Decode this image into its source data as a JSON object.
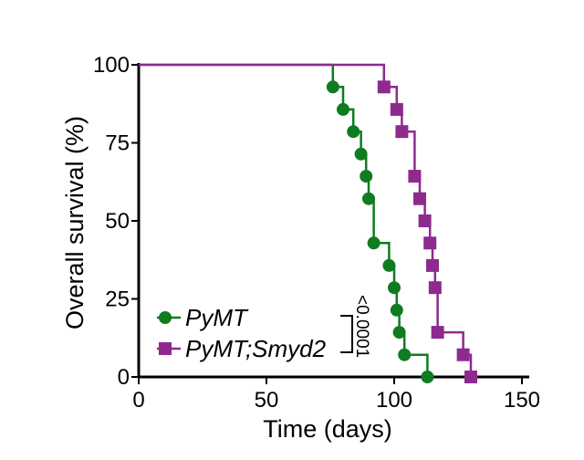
{
  "chart_data": {
    "type": "line",
    "subtype": "kaplan-meier",
    "title": "",
    "xlabel": "Time (days)",
    "ylabel": "Overall survival (%)",
    "xlim": [
      0,
      150
    ],
    "ylim": [
      0,
      100
    ],
    "x_ticks": [
      "0",
      "50",
      "100",
      "150"
    ],
    "y_ticks": [
      "0",
      "25",
      "50",
      "75",
      "100"
    ],
    "grid": false,
    "legend_position": "bottom-left",
    "p_value_label": "<0.0001",
    "series": [
      {
        "name": "PyMT",
        "color": "#0e7c1f",
        "marker": "circle",
        "steps": [
          [
            0,
            100
          ],
          [
            76,
            100
          ],
          [
            76,
            92.9
          ],
          [
            80,
            92.9
          ],
          [
            80,
            85.7
          ],
          [
            84,
            85.7
          ],
          [
            84,
            78.6
          ],
          [
            87,
            78.6
          ],
          [
            87,
            71.4
          ],
          [
            89,
            71.4
          ],
          [
            89,
            64.3
          ],
          [
            90,
            64.3
          ],
          [
            90,
            57.1
          ],
          [
            92,
            57.1
          ],
          [
            92,
            42.9
          ],
          [
            98,
            42.9
          ],
          [
            98,
            35.7
          ],
          [
            100,
            35.7
          ],
          [
            100,
            28.6
          ],
          [
            101,
            28.6
          ],
          [
            101,
            21.4
          ],
          [
            102,
            21.4
          ],
          [
            102,
            14.3
          ],
          [
            104,
            14.3
          ],
          [
            104,
            7.1
          ],
          [
            113,
            7.1
          ],
          [
            113,
            0
          ]
        ],
        "points": [
          [
            76,
            92.9
          ],
          [
            80,
            85.7
          ],
          [
            84,
            78.6
          ],
          [
            87,
            71.4
          ],
          [
            89,
            64.3
          ],
          [
            90,
            57.1
          ],
          [
            92,
            42.9
          ],
          [
            98,
            35.7
          ],
          [
            100,
            28.6
          ],
          [
            101,
            21.4
          ],
          [
            102,
            14.3
          ],
          [
            104,
            7.1
          ],
          [
            113,
            0
          ]
        ]
      },
      {
        "name": "PyMT;Smyd2",
        "color": "#8e2a8e",
        "marker": "square",
        "steps": [
          [
            0,
            100
          ],
          [
            96,
            100
          ],
          [
            96,
            92.9
          ],
          [
            101,
            92.9
          ],
          [
            101,
            85.7
          ],
          [
            103,
            85.7
          ],
          [
            103,
            78.6
          ],
          [
            108,
            78.6
          ],
          [
            108,
            64.3
          ],
          [
            110,
            64.3
          ],
          [
            110,
            57.1
          ],
          [
            112,
            57.1
          ],
          [
            112,
            50
          ],
          [
            114,
            50
          ],
          [
            114,
            42.9
          ],
          [
            115,
            42.9
          ],
          [
            115,
            35.7
          ],
          [
            116,
            35.7
          ],
          [
            116,
            28.6
          ],
          [
            117,
            28.6
          ],
          [
            117,
            14.3
          ],
          [
            127,
            14.3
          ],
          [
            127,
            7.1
          ],
          [
            130,
            7.1
          ],
          [
            130,
            0
          ]
        ],
        "points": [
          [
            96,
            92.9
          ],
          [
            101,
            85.7
          ],
          [
            103,
            78.6
          ],
          [
            108,
            64.3
          ],
          [
            110,
            57.1
          ],
          [
            112,
            50
          ],
          [
            114,
            42.9
          ],
          [
            115,
            35.7
          ],
          [
            116,
            28.6
          ],
          [
            117,
            14.3
          ],
          [
            127,
            7.1
          ],
          [
            130,
            0
          ]
        ]
      }
    ]
  }
}
